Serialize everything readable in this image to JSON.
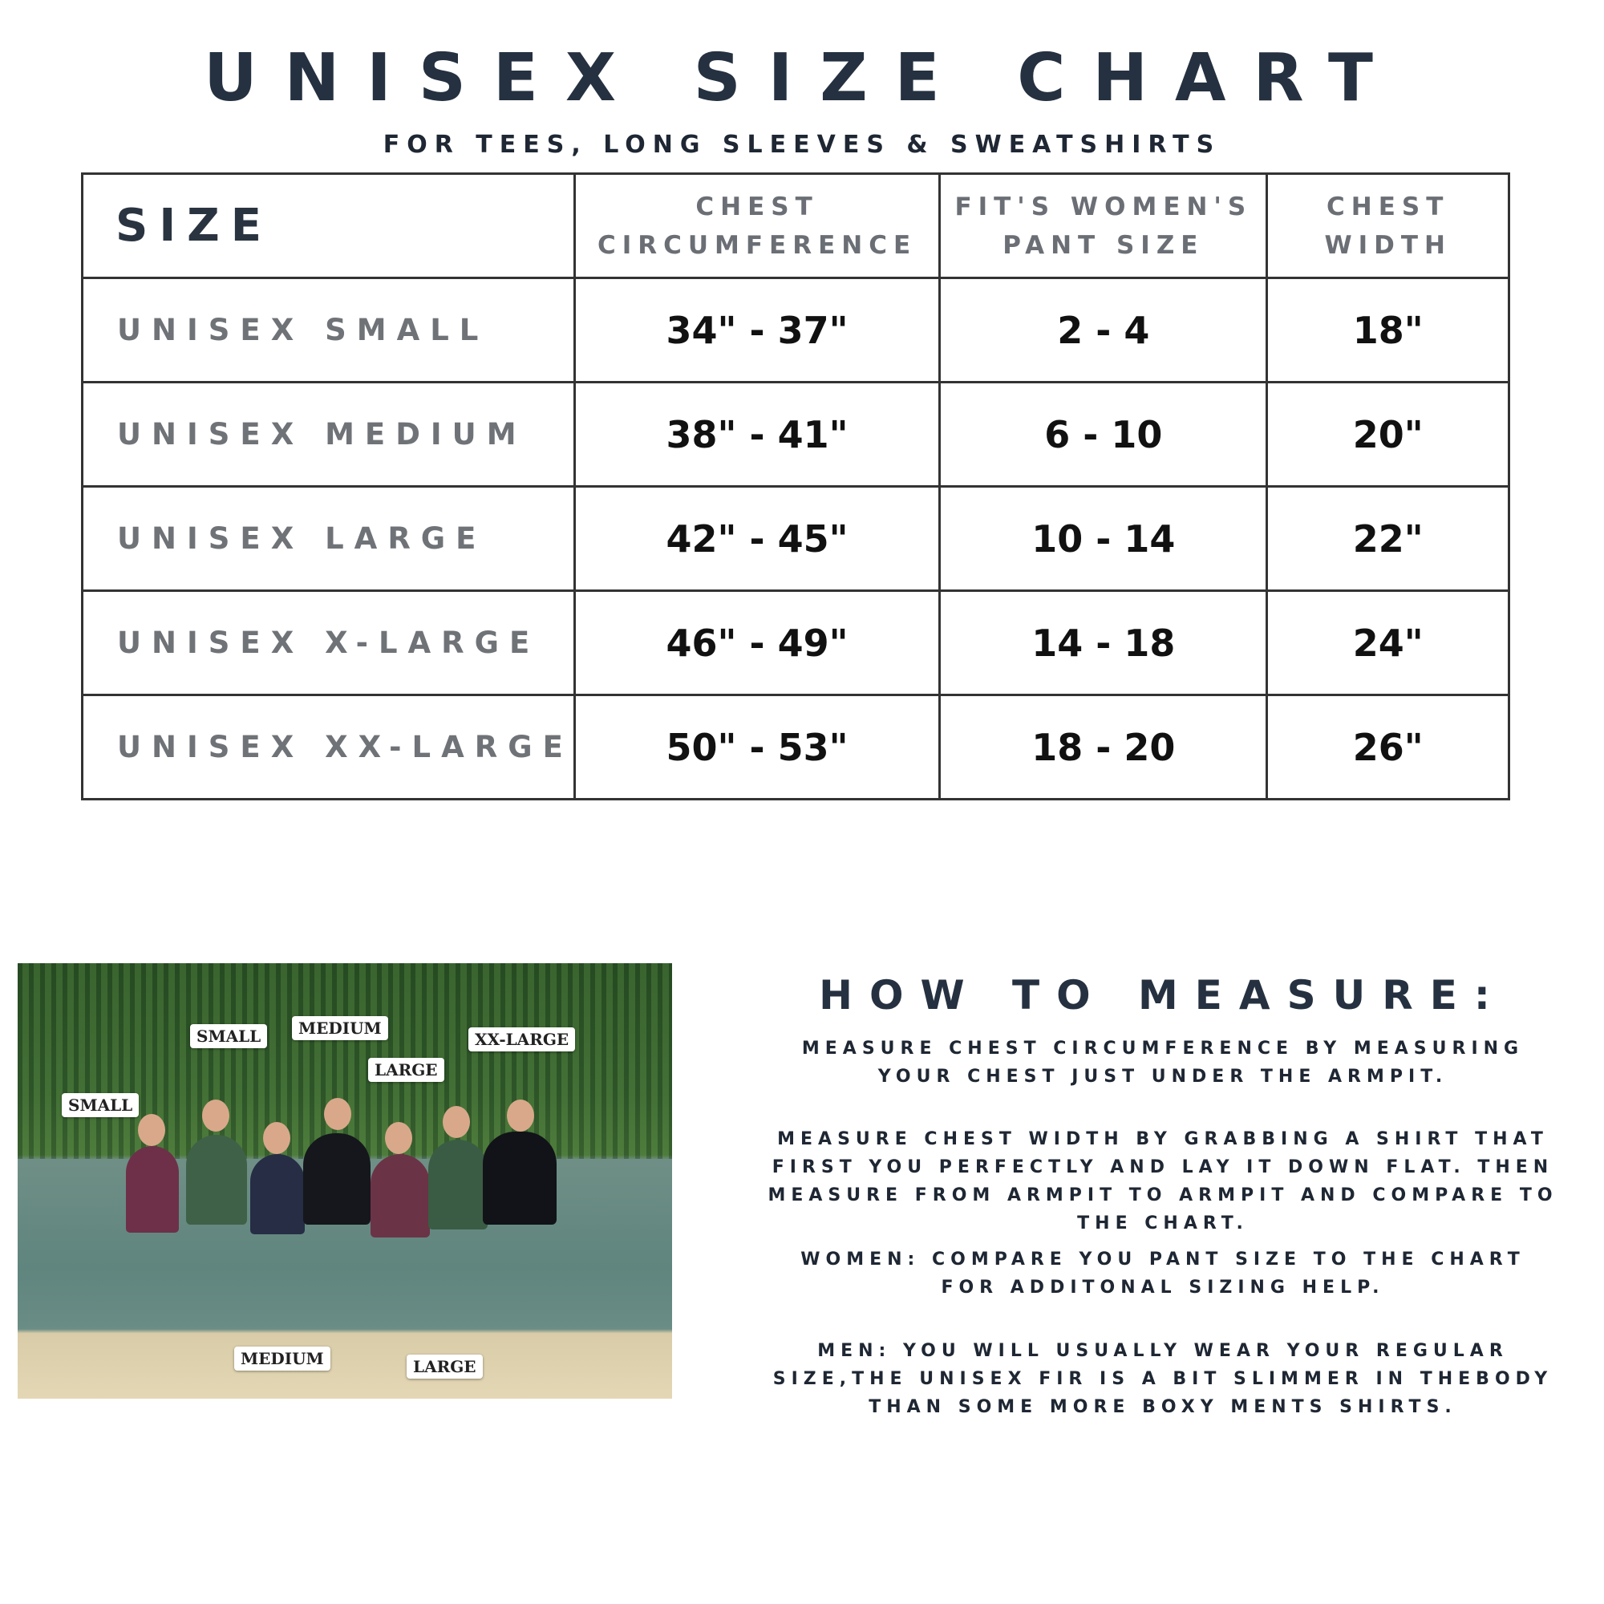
{
  "title": "UNISEX SIZE CHART",
  "subtitle": "FOR TEES, LONG SLEEVES & SWEATSHIRTS",
  "table": {
    "headers": [
      "SIZE",
      "CHEST CIRCUMFERENCE",
      "FIT'S WOMEN'S PANT SIZE",
      "CHEST WIDTH"
    ],
    "rows": [
      [
        "UNISEX SMALL",
        "34\" - 37\"",
        "2 - 4",
        "18\""
      ],
      [
        "UNISEX MEDIUM",
        "38\" - 41\"",
        "6 - 10",
        "20\""
      ],
      [
        "UNISEX LARGE",
        "42\" - 45\"",
        "10 - 14",
        "22\""
      ],
      [
        "UNISEX X-LARGE",
        "46\" - 49\"",
        "14 - 18",
        "24\""
      ],
      [
        "UNISEX XX-LARGE",
        "50\" - 53\"",
        "18 - 20",
        "26\""
      ]
    ]
  },
  "photo": {
    "labels": [
      "SMALL",
      "SMALL",
      "MEDIUM",
      "LARGE",
      "XX-LARGE",
      "MEDIUM",
      "LARGE"
    ]
  },
  "how_to": {
    "heading": "HOW TO MEASURE:",
    "paragraphs": [
      "MEASURE CHEST CIRCUMFERENCE BY MEASURING YOUR CHEST JUST UNDER THE ARMPIT.",
      "MEASURE CHEST WIDTH BY GRABBING A SHIRT THAT FIRST YOU PERFECTLY AND LAY IT DOWN FLAT. THEN MEASURE FROM ARMPIT TO ARMPIT AND COMPARE TO THE CHART.",
      "WOMEN: COMPARE YOU PANT SIZE TO THE CHART FOR ADDITONAL SIZING HELP.",
      "MEN: YOU WILL USUALLY WEAR YOUR REGULAR SIZE,THE UNISEX FIR IS A BIT SLIMMER IN THEBODY THAN SOME MORE BOXY MENTS SHIRTS."
    ]
  }
}
